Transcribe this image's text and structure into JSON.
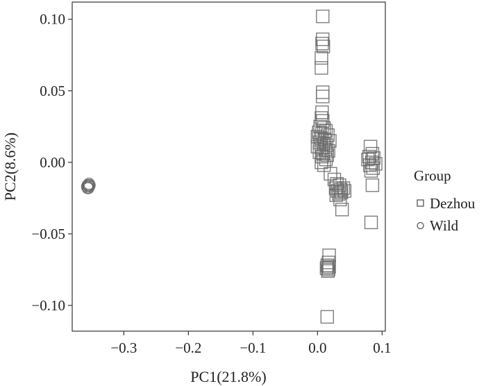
{
  "chart_data": {
    "type": "scatter",
    "xlabel": "PC1(21.8%)",
    "ylabel": "PC2(8.6%)",
    "xlim": [
      -0.38,
      0.105
    ],
    "ylim": [
      -0.118,
      0.112
    ],
    "xticks": [
      -0.3,
      -0.2,
      -0.1,
      0.0,
      0.1
    ],
    "xtick_labels": [
      "−0.3",
      "−0.2",
      "−0.1",
      "0.0",
      "0.1"
    ],
    "yticks": [
      0.1,
      0.05,
      0.0,
      -0.05,
      -0.1
    ],
    "ytick_labels": [
      "0.10",
      "0.05",
      "0.00",
      "−0.05",
      "−0.10"
    ],
    "grid": false,
    "legend": {
      "title": "Group",
      "placement": "right"
    },
    "series": [
      {
        "name": "Dezhou",
        "marker": "square",
        "color": "#666666",
        "points": [
          [
            0.008,
            0.102
          ],
          [
            0.008,
            0.086
          ],
          [
            0.007,
            0.083
          ],
          [
            0.009,
            0.081
          ],
          [
            0.006,
            0.073
          ],
          [
            0.006,
            0.066
          ],
          [
            0.008,
            0.049
          ],
          [
            0.008,
            0.046
          ],
          [
            0.007,
            0.035
          ],
          [
            0.006,
            0.031
          ],
          [
            0.008,
            0.029
          ],
          [
            0.004,
            0.025
          ],
          [
            0.01,
            0.024
          ],
          [
            0.013,
            0.022
          ],
          [
            0.002,
            0.021
          ],
          [
            0.007,
            0.02
          ],
          [
            0.016,
            0.019
          ],
          [
            0.0,
            0.018
          ],
          [
            0.005,
            0.017
          ],
          [
            0.011,
            0.016
          ],
          [
            0.019,
            0.015
          ],
          [
            0.003,
            0.014
          ],
          [
            0.009,
            0.013
          ],
          [
            0.014,
            0.012
          ],
          [
            0.0,
            0.011
          ],
          [
            0.006,
            0.01
          ],
          [
            0.012,
            0.009
          ],
          [
            0.017,
            0.008
          ],
          [
            0.003,
            0.007
          ],
          [
            0.009,
            0.006
          ],
          [
            0.015,
            0.005
          ],
          [
            0.007,
            0.004
          ],
          [
            0.013,
            0.002
          ],
          [
            0.01,
            -0.002
          ],
          [
            0.006,
            0.0
          ],
          [
            0.02,
            -0.008
          ],
          [
            0.026,
            -0.012
          ],
          [
            0.03,
            -0.015
          ],
          [
            0.034,
            -0.016
          ],
          [
            0.028,
            -0.018
          ],
          [
            0.036,
            -0.019
          ],
          [
            0.031,
            -0.02
          ],
          [
            0.04,
            -0.018
          ],
          [
            0.033,
            -0.022
          ],
          [
            0.037,
            -0.021
          ],
          [
            0.029,
            -0.023
          ],
          [
            0.042,
            -0.02
          ],
          [
            0.035,
            -0.026
          ],
          [
            0.038,
            -0.033
          ],
          [
            0.082,
            0.011
          ],
          [
            0.085,
            0.006
          ],
          [
            0.08,
            0.004
          ],
          [
            0.087,
            0.003
          ],
          [
            0.078,
            0.002
          ],
          [
            0.084,
            0.0
          ],
          [
            0.09,
            -0.001
          ],
          [
            0.081,
            -0.002
          ],
          [
            0.086,
            -0.004
          ],
          [
            0.083,
            -0.006
          ],
          [
            0.085,
            -0.016
          ],
          [
            0.083,
            -0.042
          ],
          [
            0.018,
            -0.065
          ],
          [
            0.017,
            -0.07
          ],
          [
            0.015,
            -0.072
          ],
          [
            0.018,
            -0.073
          ],
          [
            0.014,
            -0.074
          ],
          [
            0.017,
            -0.075
          ],
          [
            0.016,
            -0.076
          ],
          [
            0.015,
            -0.108
          ]
        ]
      },
      {
        "name": "Wild",
        "marker": "circle",
        "color": "#666666",
        "points": [
          [
            -0.356,
            -0.016
          ],
          [
            -0.354,
            -0.017
          ],
          [
            -0.355,
            -0.018
          ],
          [
            -0.353,
            -0.016
          ],
          [
            -0.357,
            -0.017
          ],
          [
            -0.354,
            -0.015
          ],
          [
            -0.356,
            -0.018
          ],
          [
            -0.355,
            -0.016
          ]
        ]
      }
    ]
  }
}
